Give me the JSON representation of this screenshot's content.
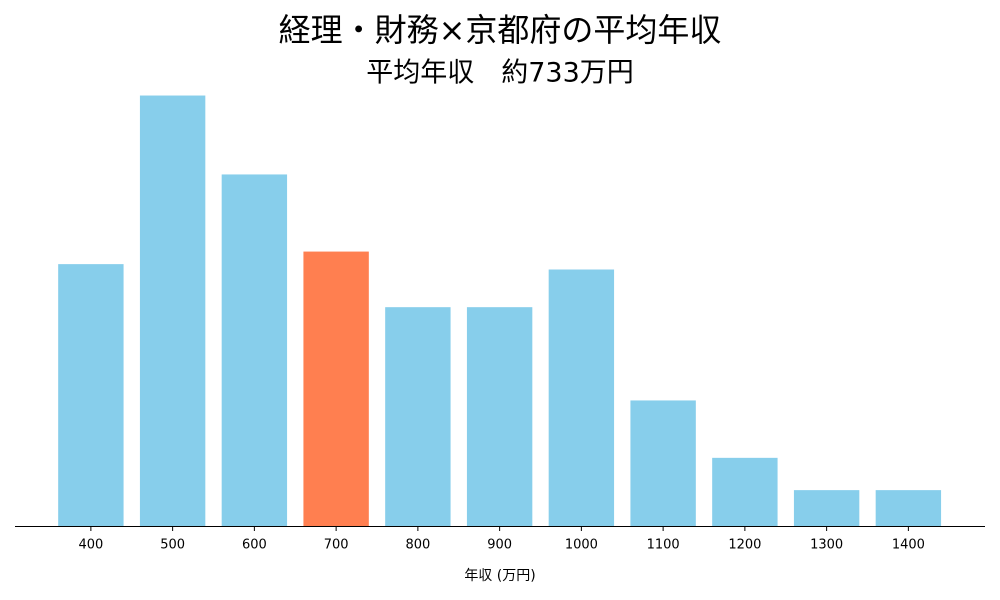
{
  "chart_data": {
    "type": "bar",
    "title": "経理・財務×京都府の平均年収",
    "subtitle": "平均年収　約733万円",
    "x_label": "年収 (万円)",
    "categories": [
      "400",
      "500",
      "600",
      "700",
      "800",
      "900",
      "1000",
      "1100",
      "1200",
      "1300",
      "1400"
    ],
    "values": [
      14.6,
      24,
      19.6,
      15.3,
      12.2,
      12.2,
      14.3,
      7,
      3.8,
      2,
      2
    ],
    "colors": [
      "#87ceeb",
      "#87ceeb",
      "#87ceeb",
      "#ff7f50",
      "#87ceeb",
      "#87ceeb",
      "#87ceeb",
      "#87ceeb",
      "#87ceeb",
      "#87ceeb",
      "#87ceeb"
    ],
    "ylim": [
      0,
      25.2
    ]
  }
}
